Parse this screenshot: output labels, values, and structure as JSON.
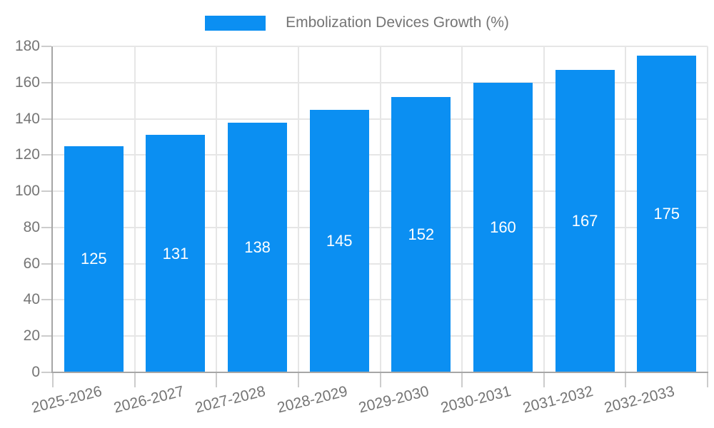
{
  "chart_data": {
    "type": "bar",
    "title": "Embolization Devices Growth (%)",
    "categories": [
      "2025-2026",
      "2026-2027",
      "2027-2028",
      "2028-2029",
      "2029-2030",
      "2030-2031",
      "2031-2032",
      "2032-2033"
    ],
    "values": [
      125,
      131,
      138,
      145,
      152,
      160,
      167,
      175
    ],
    "xlabel": "",
    "ylabel": "",
    "ylim": [
      0,
      180
    ],
    "yticks": [
      0,
      20,
      40,
      60,
      80,
      100,
      120,
      140,
      160,
      180
    ],
    "grid": true,
    "legend_position": "top",
    "value_labels": "inside-center"
  },
  "colors": {
    "bar": "#0b8ff2",
    "bar_value_text": "#ffffff",
    "label_text": "#757575",
    "gridline": "#e6e6e6",
    "axis_line": "#a6a6a6",
    "tick_mark": "#cccccc",
    "background": "#ffffff"
  }
}
